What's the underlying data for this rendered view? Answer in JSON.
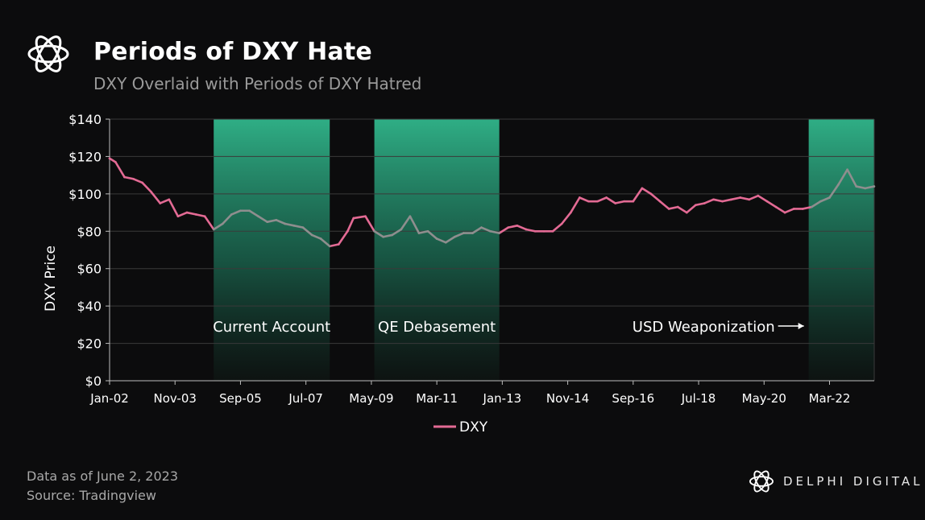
{
  "header": {
    "title": "Periods of DXY Hate",
    "subtitle": "DXY Overlaid with Periods of DXY Hatred",
    "logo_icon": "delphi-flower-logo-icon"
  },
  "footer": {
    "data_as_of": "Data as of June 2, 2023",
    "source": "Source: Tradingview"
  },
  "brand": {
    "name": "DELPHI DIGITAL",
    "icon": "delphi-flower-logo-icon"
  },
  "colors": {
    "background": "#0c0c0d",
    "line": "#e36a94",
    "line_in_period": "#8e8e8e",
    "period_top": "#2fae85",
    "grid": "#3a3a3a"
  },
  "chart_data": {
    "type": "line",
    "title": "Periods of DXY Hate",
    "subtitle": "DXY Overlaid with Periods of DXY Hatred",
    "xlabel": "",
    "ylabel": "DXY Price",
    "ylim": [
      0,
      140
    ],
    "xlim": [
      "2002-01-01",
      "2023-06-02"
    ],
    "y_ticks": [
      0,
      20,
      40,
      60,
      80,
      100,
      120,
      140
    ],
    "y_tick_labels": [
      "$0",
      "$20",
      "$40",
      "$60",
      "$80",
      "$100",
      "$120",
      "$140"
    ],
    "x_ticks": [
      "2002-01",
      "2003-11",
      "2005-09",
      "2007-07",
      "2009-05",
      "2011-03",
      "2013-01",
      "2014-11",
      "2016-09",
      "2018-07",
      "2020-05",
      "2022-03"
    ],
    "x_tick_labels": [
      "Jan-02",
      "Nov-03",
      "Sep-05",
      "Jul-07",
      "May-09",
      "Mar-11",
      "Jan-13",
      "Nov-14",
      "Sep-16",
      "Jul-18",
      "May-20",
      "Mar-22"
    ],
    "grid": true,
    "legend": {
      "position": "bottom-center",
      "entries": [
        "DXY"
      ]
    },
    "periods": [
      {
        "label": "Current Account",
        "start": "2004-12",
        "end": "2008-03"
      },
      {
        "label": "QE Debasement",
        "start": "2009-06",
        "end": "2012-12"
      },
      {
        "label": "USD Weaponization",
        "start": "2021-08",
        "end": "2023-06",
        "arrow": true
      }
    ],
    "series": [
      {
        "name": "DXY",
        "x": [
          "2002-01",
          "2002-03",
          "2002-06",
          "2002-09",
          "2002-12",
          "2003-03",
          "2003-06",
          "2003-09",
          "2003-12",
          "2004-03",
          "2004-06",
          "2004-09",
          "2004-12",
          "2005-03",
          "2005-06",
          "2005-09",
          "2005-12",
          "2006-03",
          "2006-06",
          "2006-09",
          "2006-12",
          "2007-03",
          "2007-06",
          "2007-09",
          "2007-12",
          "2008-03",
          "2008-06",
          "2008-09",
          "2008-11",
          "2009-03",
          "2009-06",
          "2009-09",
          "2009-12",
          "2010-03",
          "2010-06",
          "2010-09",
          "2010-12",
          "2011-03",
          "2011-06",
          "2011-09",
          "2011-12",
          "2012-03",
          "2012-06",
          "2012-09",
          "2012-12",
          "2013-03",
          "2013-06",
          "2013-09",
          "2013-12",
          "2014-03",
          "2014-06",
          "2014-09",
          "2014-12",
          "2015-03",
          "2015-06",
          "2015-09",
          "2015-12",
          "2016-03",
          "2016-06",
          "2016-09",
          "2016-12",
          "2017-03",
          "2017-06",
          "2017-09",
          "2017-12",
          "2018-03",
          "2018-06",
          "2018-09",
          "2018-12",
          "2019-03",
          "2019-06",
          "2019-09",
          "2019-12",
          "2020-03",
          "2020-06",
          "2020-09",
          "2020-12",
          "2021-03",
          "2021-06",
          "2021-09",
          "2021-12",
          "2022-03",
          "2022-06",
          "2022-09",
          "2022-12",
          "2023-03",
          "2023-06"
        ],
        "values": [
          119,
          117,
          109,
          108,
          106,
          101,
          95,
          97,
          88,
          90,
          89,
          88,
          81,
          84,
          89,
          91,
          91,
          88,
          85,
          86,
          84,
          83,
          82,
          78,
          76,
          72,
          73,
          80,
          87,
          88,
          80,
          77,
          78,
          81,
          88,
          79,
          80,
          76,
          74,
          77,
          79,
          79,
          82,
          80,
          79,
          82,
          83,
          81,
          80,
          80,
          80,
          84,
          90,
          98,
          96,
          96,
          98,
          95,
          96,
          96,
          103,
          100,
          96,
          92,
          93,
          90,
          94,
          95,
          97,
          96,
          97,
          98,
          97,
          99,
          96,
          93,
          90,
          92,
          92,
          93,
          96,
          98,
          105,
          113,
          104,
          103,
          104
        ]
      }
    ]
  }
}
